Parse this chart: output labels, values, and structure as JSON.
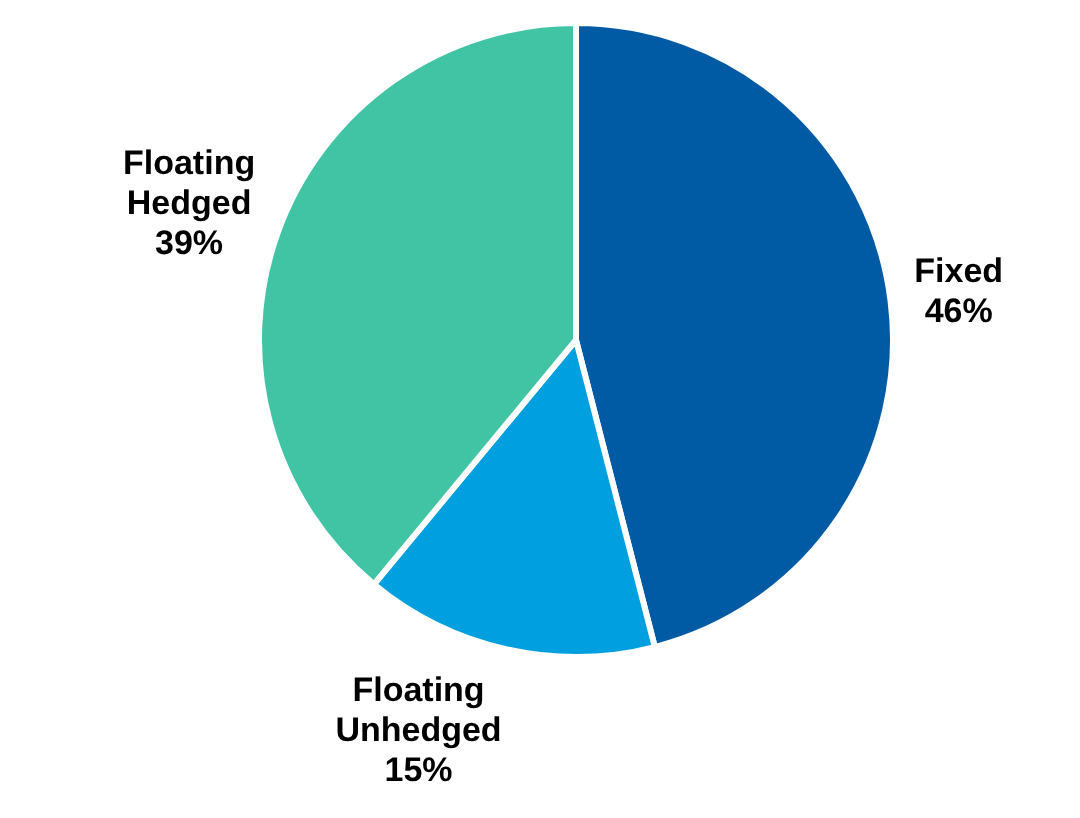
{
  "chart_data": {
    "type": "pie",
    "categories": [
      "Fixed",
      "Floating Unhedged",
      "Floating Hedged"
    ],
    "values": [
      46,
      15,
      39
    ],
    "colors": [
      "#005ba4",
      "#00a0e0",
      "#40c4a4"
    ],
    "value_labels": [
      "46%",
      "15%",
      "39%"
    ],
    "legend": false
  }
}
